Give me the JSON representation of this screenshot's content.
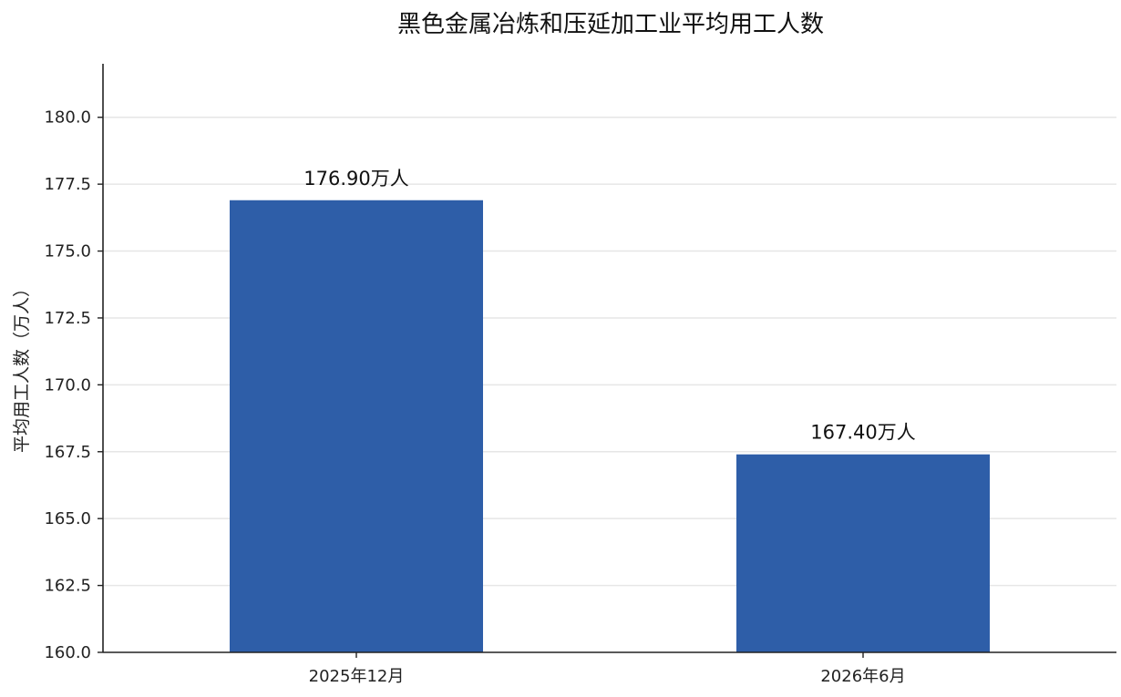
{
  "chart_data": {
    "type": "bar",
    "title": "黑色金属冶炼和压延加工业平均用工人数",
    "xlabel": "",
    "ylabel": "平均用工人数（万人）",
    "categories": [
      "2025年12月",
      "2026年6月"
    ],
    "values": [
      176.9,
      167.4
    ],
    "value_labels": [
      "176.90万人",
      "167.40万人"
    ],
    "ylim": [
      160,
      182
    ],
    "yticks": [
      160.0,
      162.5,
      165.0,
      167.5,
      170.0,
      172.5,
      175.0,
      177.5,
      180.0
    ],
    "ytick_labels": [
      "160.0",
      "162.5",
      "165.0",
      "167.5",
      "170.0",
      "172.5",
      "175.0",
      "177.5",
      "180.0"
    ],
    "grid": true,
    "bar_color": "#2e5ea8",
    "grid_color": "#e6e6e6",
    "axis_color": "#222222"
  }
}
